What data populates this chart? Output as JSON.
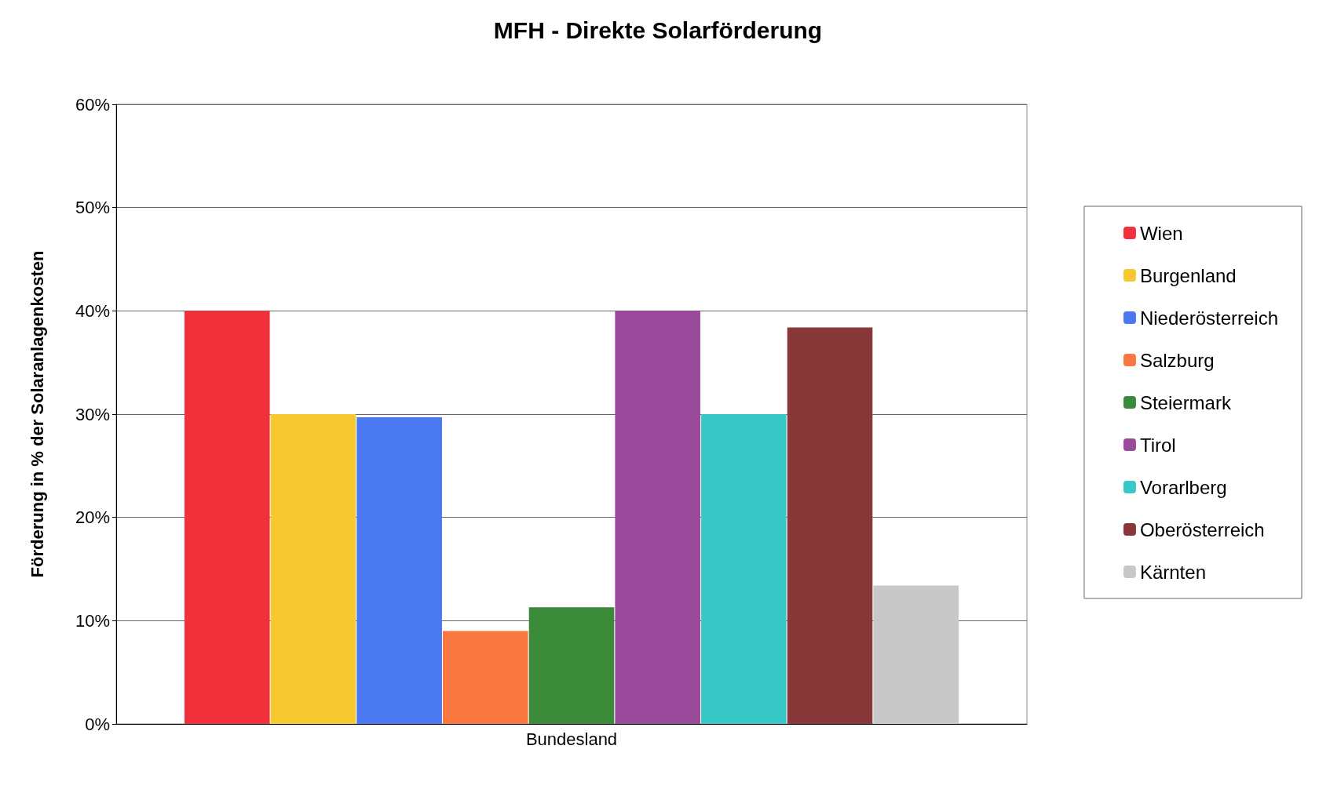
{
  "chart_data": {
    "type": "bar",
    "title": "MFH - Direkte Solarförderung",
    "ylabel": "Förderung in % der Solaranlagenkosten",
    "categories": [
      "Bundesland"
    ],
    "series": [
      {
        "name": "Wien",
        "color": "#f0303a",
        "values": [
          0.4
        ]
      },
      {
        "name": "Burgenland",
        "color": "#f8c830",
        "values": [
          0.3
        ]
      },
      {
        "name": "Niederösterreich",
        "color": "#4a78f0",
        "values": [
          0.297
        ]
      },
      {
        "name": "Salzburg",
        "color": "#f87840",
        "values": [
          0.09
        ]
      },
      {
        "name": "Steiermark",
        "color": "#3a8a3a",
        "values": [
          0.113
        ]
      },
      {
        "name": "Tirol",
        "color": "#9a4a9a",
        "values": [
          0.4
        ]
      },
      {
        "name": "Vorarlberg",
        "color": "#38c8c8",
        "values": [
          0.3
        ]
      },
      {
        "name": "Oberösterreich",
        "color": "#883838",
        "values": [
          0.384
        ]
      },
      {
        "name": "Kärnten",
        "color": "#c8c8c8",
        "values": [
          0.134
        ]
      }
    ],
    "ylim": [
      0,
      0.6
    ],
    "yticks": [
      {
        "value": 0,
        "label": "0%"
      },
      {
        "value": 0.1,
        "label": "10%"
      },
      {
        "value": 0.2,
        "label": "20%"
      },
      {
        "value": 0.3,
        "label": "30%"
      },
      {
        "value": 0.4,
        "label": "40%"
      },
      {
        "value": 0.5,
        "label": "50%"
      },
      {
        "value": 0.6,
        "label": "60%"
      }
    ],
    "grid": "y",
    "legend": "right"
  }
}
